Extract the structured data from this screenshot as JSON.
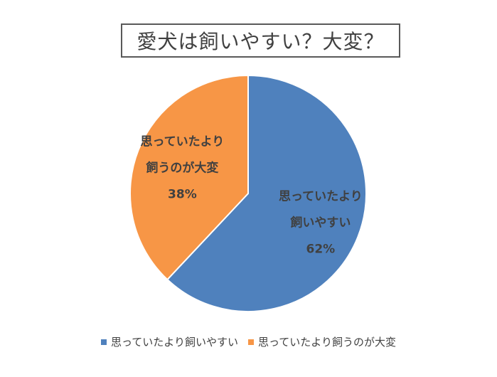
{
  "chart_data": {
    "type": "pie",
    "title": "愛犬は飼いやすい？大変？",
    "slices": [
      {
        "name": "思っていたより飼いやすい",
        "value": 62,
        "label_lines": [
          "思っていたより",
          "飼いやすい",
          "62%"
        ],
        "color": "#4F81BD"
      },
      {
        "name": "思っていたより飼うのが大変",
        "value": 38,
        "label_lines": [
          "思っていたより",
          "飼うのが大変",
          "38%"
        ],
        "color": "#F79646"
      }
    ],
    "legend_position": "bottom",
    "start_angle": "12 o'clock",
    "direction": "clockwise"
  }
}
